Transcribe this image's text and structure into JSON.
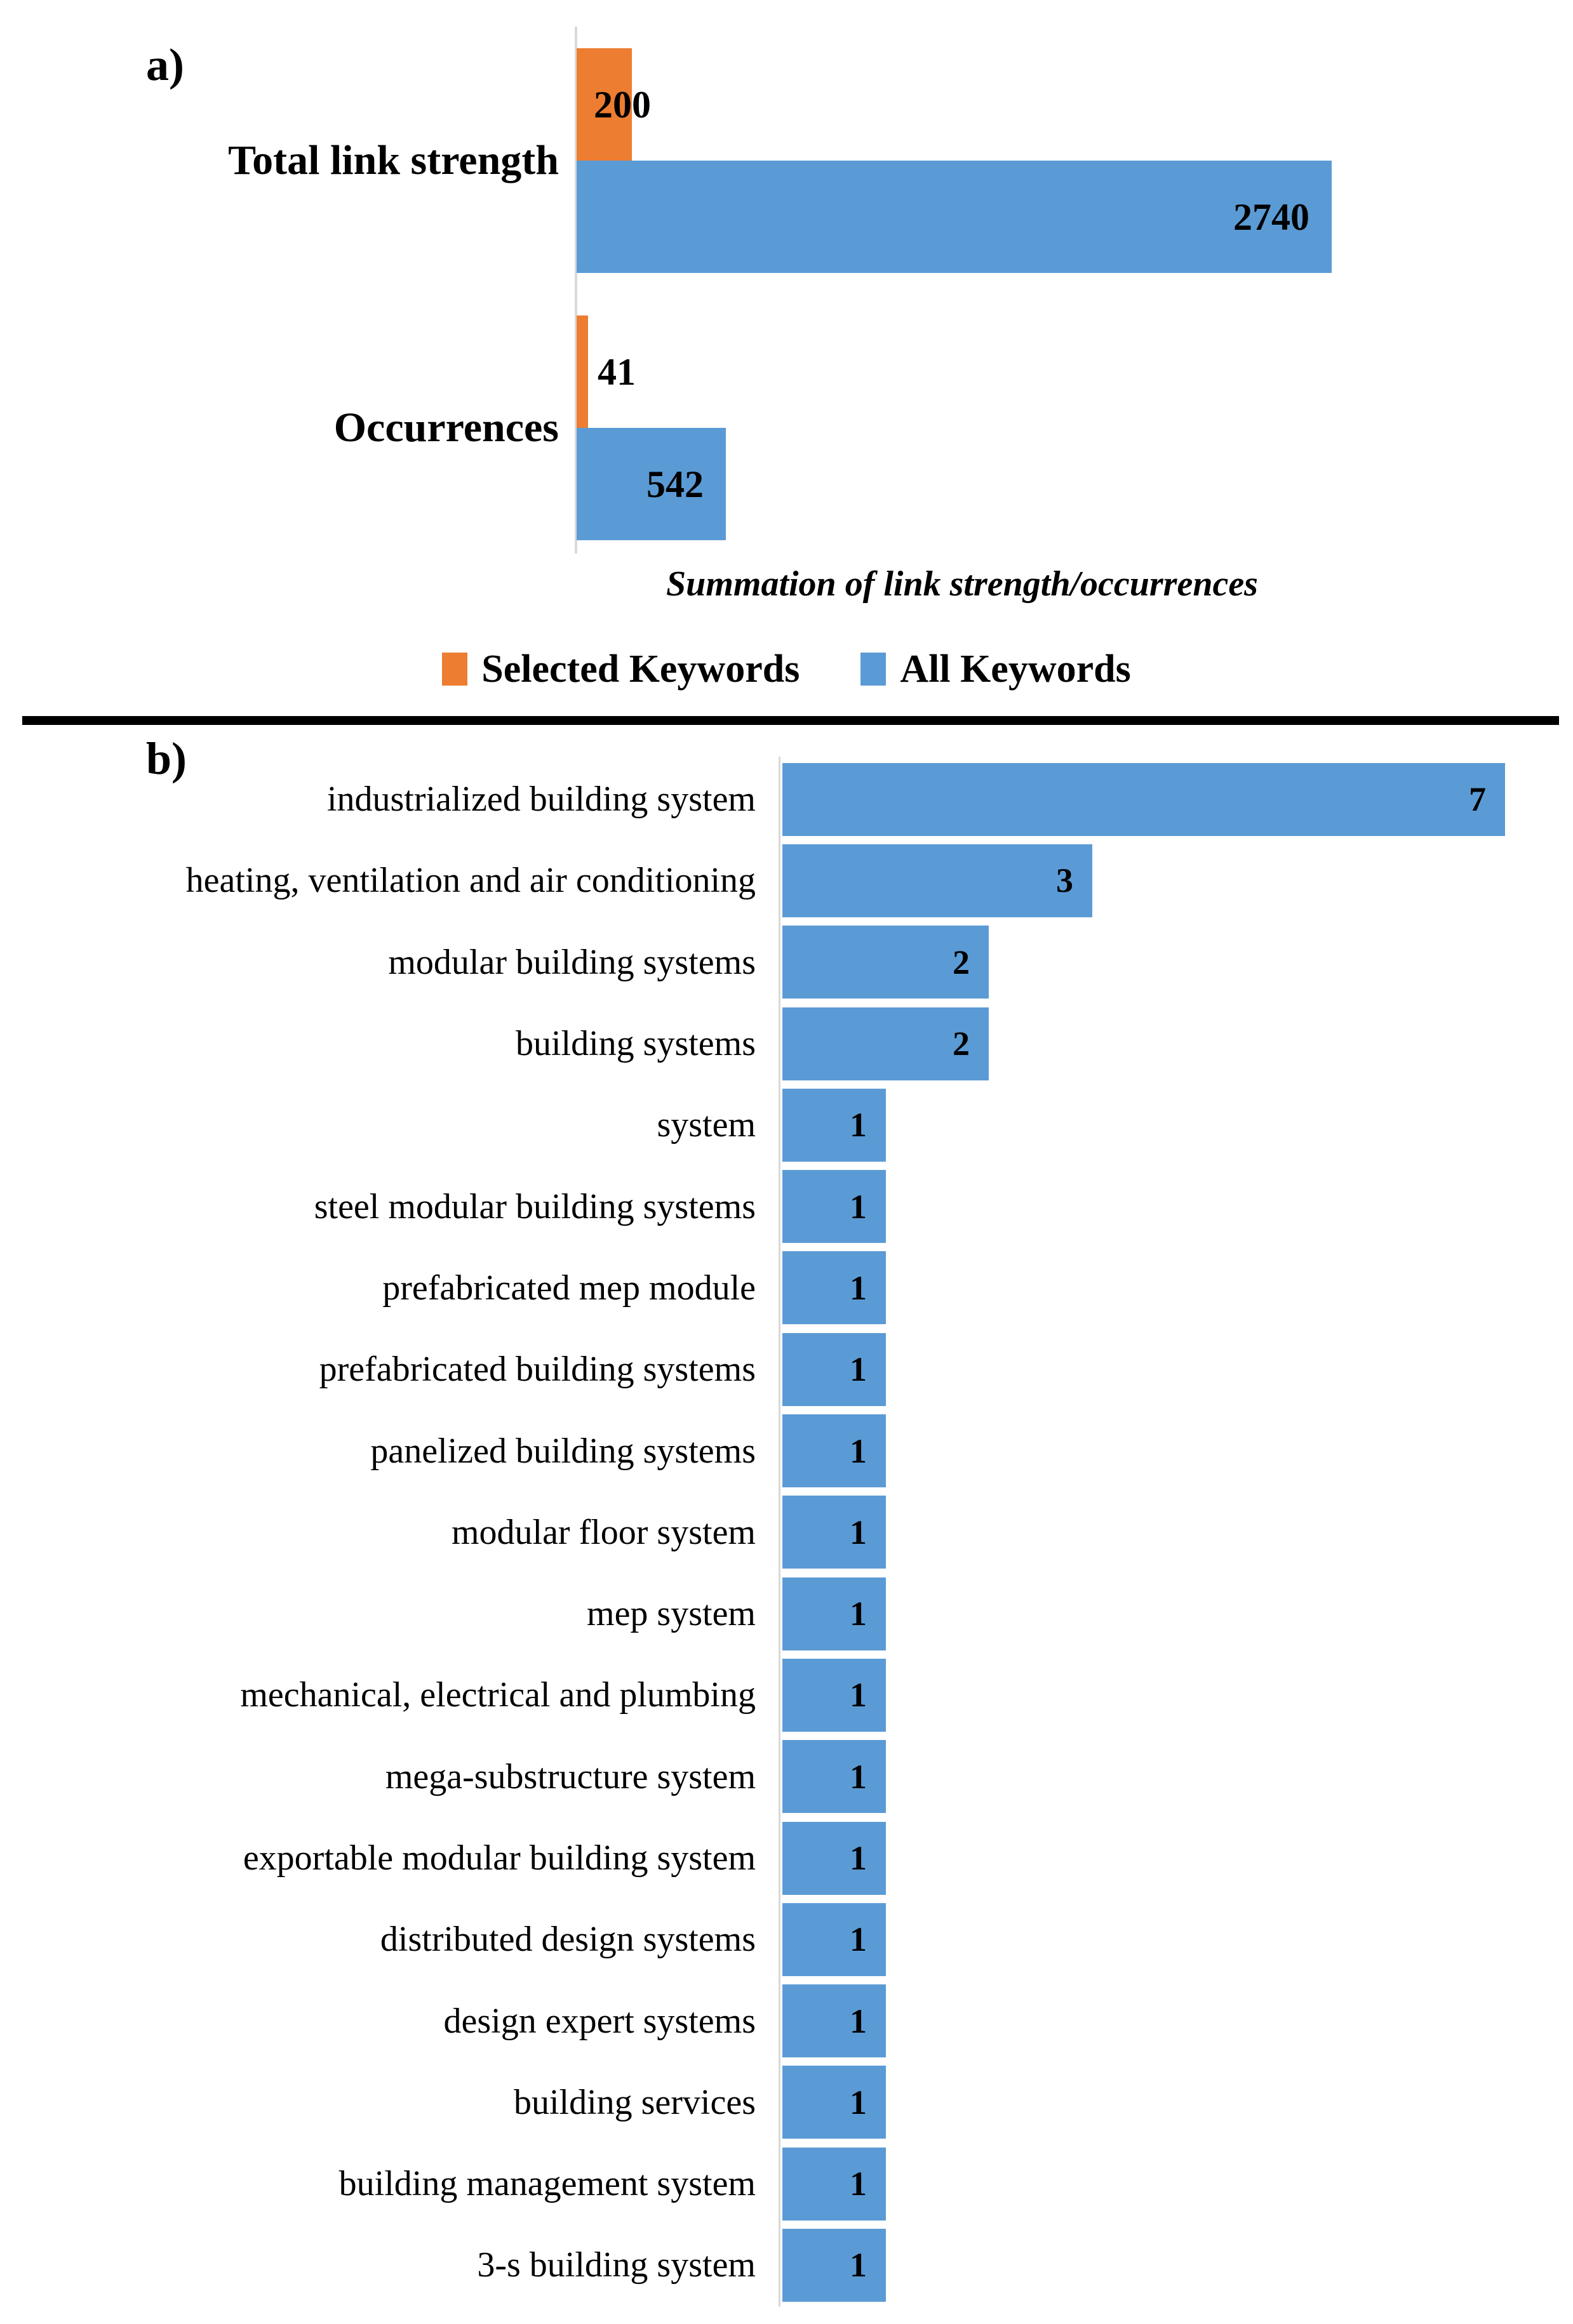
{
  "chart_data": [
    {
      "type": "bar",
      "orientation": "horizontal",
      "panel_label": "a)",
      "title": "",
      "xlabel": "Summation of link strength/occurrences",
      "ylabel": "",
      "categories": [
        "Total link strength",
        "Occurrences"
      ],
      "series": [
        {
          "name": "Selected Keywords",
          "color": "#ED7D31",
          "values": [
            200,
            41
          ]
        },
        {
          "name": "All Keywords",
          "color": "#5B9BD5",
          "values": [
            2740,
            542
          ]
        }
      ],
      "xlim": [
        0,
        2900
      ],
      "grid": false,
      "legend_position": "bottom",
      "data_labels": true
    },
    {
      "type": "bar",
      "orientation": "horizontal",
      "panel_label": "b)",
      "title": "",
      "xlabel": "",
      "ylabel": "",
      "bar_color": "#5B9BD5",
      "categories": [
        "industrialized building system",
        "heating, ventilation and air conditioning",
        "modular building systems",
        "building systems",
        "system",
        "steel modular building systems",
        "prefabricated mep module",
        "prefabricated building systems",
        "panelized building systems",
        "modular floor system",
        "mep system",
        "mechanical, electrical and plumbing",
        "mega-substructure system",
        "exportable modular building system",
        "distributed design systems",
        "design expert systems",
        "building services",
        "building management system",
        "3-s building system"
      ],
      "values": [
        7,
        3,
        2,
        2,
        1,
        1,
        1,
        1,
        1,
        1,
        1,
        1,
        1,
        1,
        1,
        1,
        1,
        1,
        1
      ],
      "xlim": [
        0,
        7.6
      ],
      "grid": false,
      "data_labels": true
    }
  ],
  "colors": {
    "selected_keywords": "#ED7D31",
    "all_keywords": "#5B9BD5",
    "axis_line": "#D9D9D9",
    "separator": "#000000"
  }
}
